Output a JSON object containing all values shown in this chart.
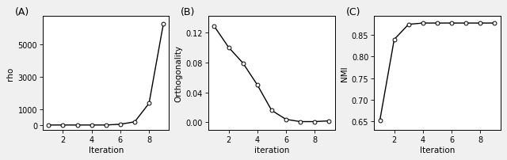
{
  "panel_A": {
    "label": "(A)",
    "x": [
      1,
      2,
      3,
      4,
      5,
      6,
      7,
      8,
      9
    ],
    "y": [
      2,
      2,
      2,
      2,
      2,
      50,
      200,
      1350,
      6300
    ],
    "xlabel": "Iteration",
    "ylabel": "rho",
    "yticks": [
      0,
      1000,
      3000,
      5000
    ],
    "xticks": [
      2,
      4,
      6,
      8
    ],
    "xlim": [
      0.6,
      9.4
    ],
    "ylim": [
      -300,
      6800
    ]
  },
  "panel_B": {
    "label": "(B)",
    "x": [
      1,
      2,
      3,
      4,
      5,
      6,
      7,
      8,
      9
    ],
    "y": [
      0.128,
      0.1,
      0.079,
      0.05,
      0.016,
      0.004,
      0.001,
      0.001,
      0.002
    ],
    "xlabel": "iteration",
    "ylabel": "Orthogonality",
    "yticks": [
      0.0,
      0.04,
      0.08,
      0.12
    ],
    "xticks": [
      2,
      4,
      6,
      8
    ],
    "xlim": [
      0.6,
      9.4
    ],
    "ylim": [
      -0.01,
      0.142
    ]
  },
  "panel_C": {
    "label": "(C)",
    "x": [
      1,
      2,
      3,
      4,
      5,
      6,
      7,
      8,
      9
    ],
    "y": [
      0.652,
      0.84,
      0.875,
      0.878,
      0.878,
      0.878,
      0.878,
      0.878,
      0.878
    ],
    "xlabel": "Iteration",
    "ylabel": "NMI",
    "yticks": [
      0.65,
      0.7,
      0.75,
      0.8,
      0.85
    ],
    "xticks": [
      2,
      4,
      6,
      8
    ],
    "xlim": [
      0.6,
      9.4
    ],
    "ylim": [
      0.63,
      0.895
    ]
  },
  "line_color": "#000000",
  "marker": "o",
  "marker_facecolor": "#ffffff",
  "marker_edgecolor": "#000000",
  "marker_size": 3.5,
  "linewidth": 1.0,
  "bg_color": "#f0f0f0",
  "plot_bg_color": "#ffffff",
  "label_fontsize": 7.5,
  "tick_fontsize": 7,
  "panel_label_fontsize": 9,
  "figsize": [
    6.4,
    2.03
  ],
  "dpi": 100
}
